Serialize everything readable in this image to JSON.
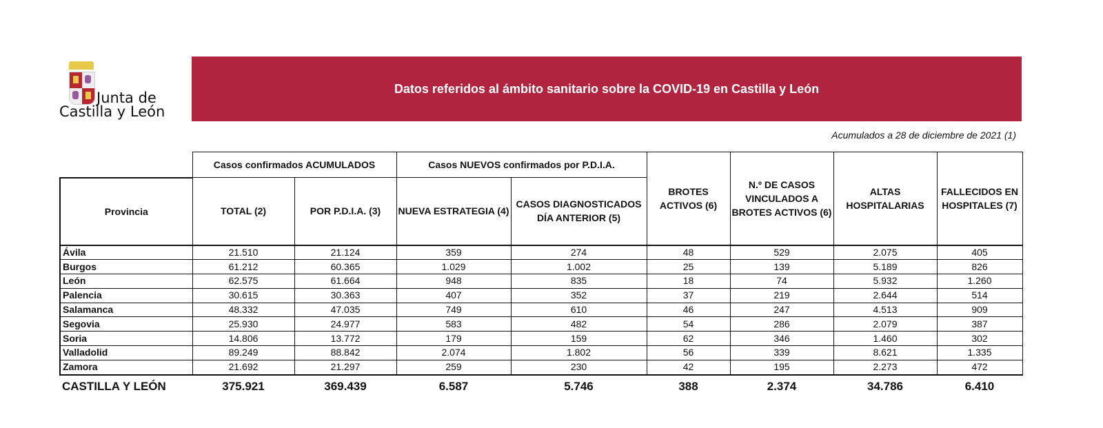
{
  "logo": {
    "line1": "Junta de",
    "line2": "Castilla y León"
  },
  "title": "Datos referidos al ámbito sanitario sobre la COVID-19 en Castilla y León",
  "subtitle": "Acumulados a 28 de diciembre de 2021 (1)",
  "groups": {
    "acumulados": "Casos confirmados ACUMULADOS",
    "nuevos": "Casos NUEVOS confirmados por P.D.I.A."
  },
  "columns": [
    "Provincia",
    "TOTAL (2)",
    "POR P.D.I.A. (3)",
    "NUEVA ESTRATEGIA (4)",
    "CASOS DIAGNOSTICADOS DÍA ANTERIOR (5)",
    "BROTES ACTIVOS (6)",
    "N.º DE CASOS VINCULADOS A BROTES ACTIVOS (6)",
    "ALTAS HOSPITALARIAS",
    "FALLECIDOS EN HOSPITALES (7)"
  ],
  "rows": [
    [
      "Ávila",
      "21.510",
      "21.124",
      "359",
      "274",
      "48",
      "529",
      "2.075",
      "405"
    ],
    [
      "Burgos",
      "61.212",
      "60.365",
      "1.029",
      "1.002",
      "25",
      "139",
      "5.189",
      "826"
    ],
    [
      "León",
      "62.575",
      "61.664",
      "948",
      "835",
      "18",
      "74",
      "5.932",
      "1.260"
    ],
    [
      "Palencia",
      "30.615",
      "30.363",
      "407",
      "352",
      "37",
      "219",
      "2.644",
      "514"
    ],
    [
      "Salamanca",
      "48.332",
      "47.035",
      "749",
      "610",
      "46",
      "247",
      "4.513",
      "909"
    ],
    [
      "Segovia",
      "25.930",
      "24.977",
      "583",
      "482",
      "54",
      "286",
      "2.079",
      "387"
    ],
    [
      "Soria",
      "14.806",
      "13.772",
      "179",
      "159",
      "62",
      "346",
      "1.460",
      "302"
    ],
    [
      "Valladolid",
      "89.249",
      "88.842",
      "2.074",
      "1.802",
      "56",
      "339",
      "8.621",
      "1.335"
    ],
    [
      "Zamora",
      "21.692",
      "21.297",
      "259",
      "230",
      "42",
      "195",
      "2.273",
      "472"
    ]
  ],
  "total": [
    "CASTILLA Y LEÓN",
    "375.921",
    "369.439",
    "6.587",
    "5.746",
    "388",
    "2.374",
    "34.786",
    "6.410"
  ],
  "colors": {
    "banner": "#b0243f"
  }
}
